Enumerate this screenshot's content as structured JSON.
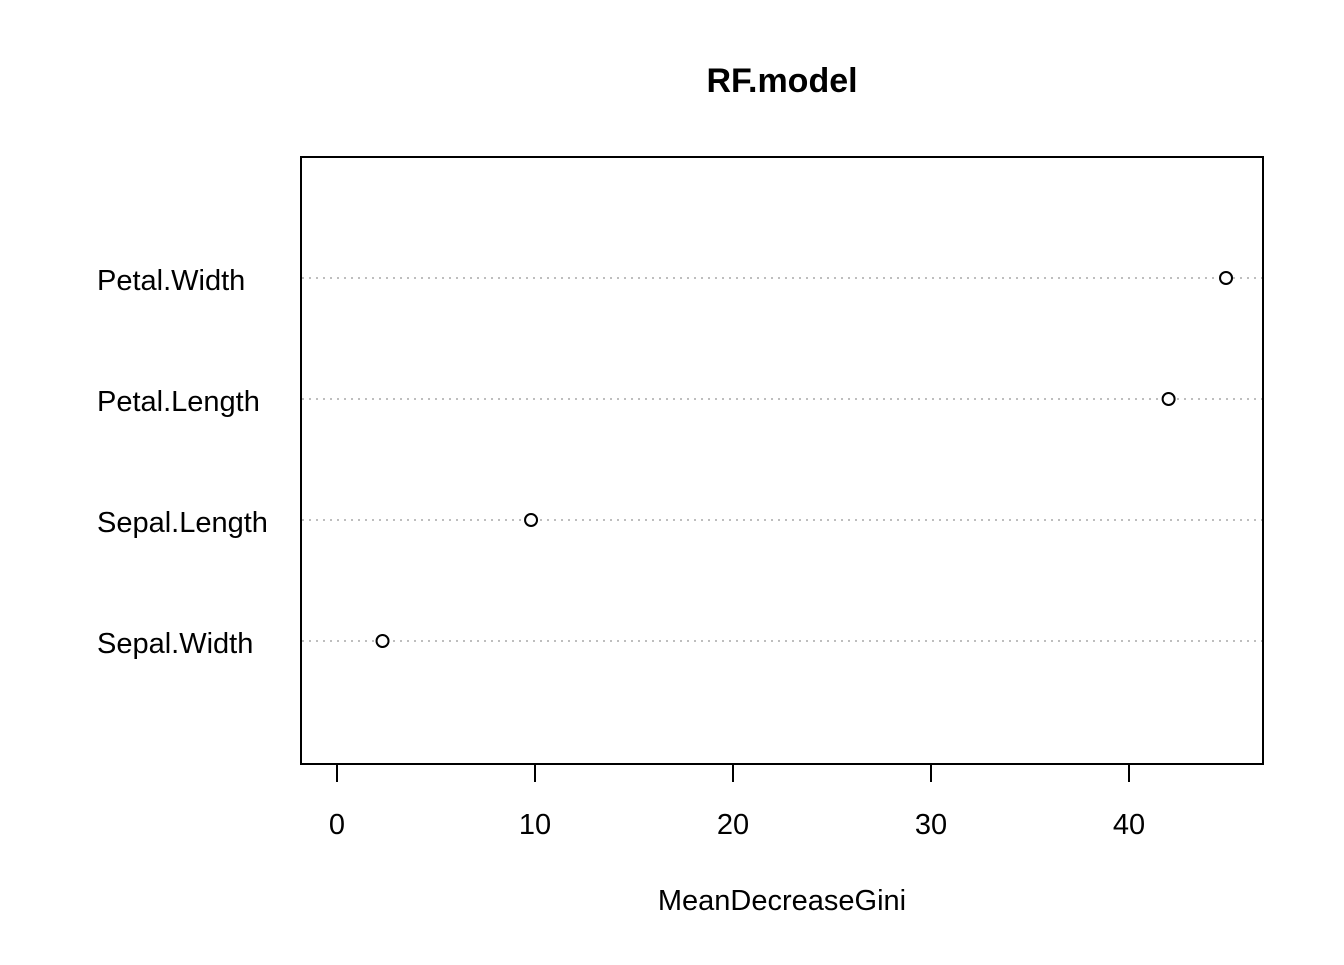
{
  "chart_data": {
    "type": "scatter",
    "subtype": "dotchart",
    "title": "RF.model",
    "xlabel": "MeanDecreaseGini",
    "ylabel": "",
    "xlim": [
      -1.8,
      46.8
    ],
    "x_ticks": [
      0,
      10,
      20,
      30,
      40
    ],
    "x_tick_labels": [
      "0",
      "10",
      "20",
      "30",
      "40"
    ],
    "grid": "horizontal dotted guide lines per category",
    "legend": "none",
    "categories": [
      "Petal.Width",
      "Petal.Length",
      "Sepal.Length",
      "Sepal.Width"
    ],
    "values": [
      44.9,
      42.0,
      9.8,
      2.3
    ],
    "marker": "open circle",
    "colors": {
      "points": "#000000",
      "guides": "#bebebe",
      "frame": "#000000"
    }
  }
}
